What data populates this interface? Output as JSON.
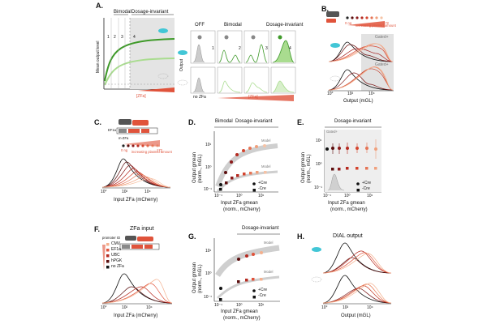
{
  "colors": {
    "green_dark": "#3f9a2a",
    "green_light": "#a9dc8f",
    "red": "#e0533b",
    "grey": "#d9d9d9",
    "dark_red": "#7a0f0f",
    "cyan": "#42c6d6"
  },
  "A": {
    "label": "A.",
    "bimodal": "Bimodal",
    "dosage_invariant": "Dosage-invariant",
    "y_axis": "Mean output level",
    "x_axis": "[ZFa]",
    "regions": [
      "1",
      "2",
      "3",
      "4"
    ],
    "off": "OFF",
    "bimodal2": "Bimodal",
    "dosage_invariant2": "Dosage-invariant",
    "output": "Output",
    "no_zfa": "no ZFa",
    "zfa": "[ZFa]",
    "cells": [
      "1",
      "2",
      "3",
      "4"
    ]
  },
  "B": {
    "label": "B.",
    "gated1": "Gated+",
    "gated2": "Gated+",
    "x_axis": "Output (mGL)",
    "ticks": [
      "10°",
      "10²",
      "10⁴"
    ],
    "plasmid": "increasing plasmid amount",
    "amt_lo": "0 ng",
    "amt_hi": "172"
  },
  "C": {
    "label": "C.",
    "ef1a": "EF1a",
    "zfa": "m-ZFa",
    "plasmid": "increasing plasmid amount",
    "amt_lo": "0 ng",
    "amt_hi": "172",
    "x_axis": "Input ZFa (mCherry)",
    "ticks": [
      "10°",
      "10²",
      "10⁴"
    ]
  },
  "D": {
    "label": "D.",
    "bimodal": "Bimodal",
    "dosage_invariant": "Dosage-invariant",
    "y_axis1": "Output gmean",
    "y_axis2": "(norm., mGL)",
    "x_axis1": "Input ZFa gmean",
    "x_axis2": "(norm., mCherry)",
    "model1": "Model",
    "model2": "Model",
    "legend": [
      "+Cre",
      "-Cre"
    ],
    "yticks": [
      "10¹",
      "10⁰",
      "10⁻¹"
    ],
    "xticks": [
      "10⁻¹",
      "10⁰",
      "10¹"
    ]
  },
  "E": {
    "label": "E.",
    "dosage_invariant": "Dosage-invariant",
    "gated": "Gated+",
    "y_axis1": "Output gmean",
    "y_axis2": "(norm., mGL)",
    "x_axis1": "Input ZFa gmean",
    "x_axis2": "(norm., mCherry)",
    "legend": [
      "+Cre",
      "-Cre"
    ],
    "yticks": [
      "10¹",
      "10⁰",
      "10⁻¹"
    ],
    "xticks": [
      "10⁻¹",
      "10⁰",
      "10¹"
    ]
  },
  "F": {
    "label": "F.",
    "title": "ZFa input",
    "promoter": "promoter ID",
    "promoters": [
      "CMV",
      "EF1a",
      "UBC",
      "hPGK",
      "no ZFa"
    ],
    "x_axis": "Input ZFa (mCherry)",
    "ticks": [
      "10°",
      "10²",
      "10⁴"
    ]
  },
  "G": {
    "label": "G.",
    "dosage_invariant": "Dosage-invariant",
    "y_axis1": "Output gmean",
    "y_axis2": "(norm., mGL)",
    "x_axis1": "Input ZFa gmean",
    "x_axis2": "(norm., mCherry)",
    "model1": "Model",
    "model2": "Model",
    "legend": [
      "+Cre",
      "-Cre"
    ],
    "yticks": [
      "10¹",
      "10⁰",
      "10⁻¹"
    ],
    "xticks": [
      "10⁻¹",
      "10⁰",
      "10¹"
    ]
  },
  "H": {
    "label": "H.",
    "title": "DIAL output",
    "x_axis": "Output (mGL)",
    "ticks": [
      "10°",
      "10²",
      "10⁴"
    ]
  }
}
